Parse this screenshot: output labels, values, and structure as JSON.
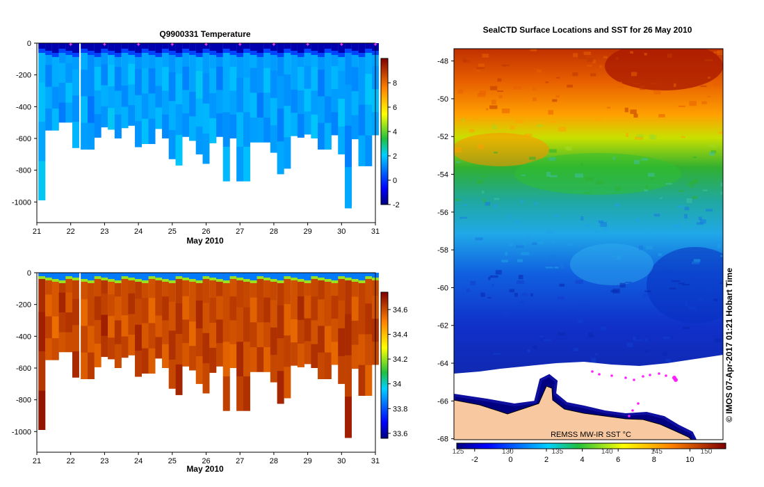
{
  "chart_data": [
    {
      "type": "heatmap",
      "title": "Q9900331  Temperature",
      "xlabel": "May 2010",
      "xlim": [
        21,
        31
      ],
      "ylim": [
        -1130,
        0
      ],
      "xticks": [
        "21",
        "22",
        "23",
        "24",
        "25",
        "26",
        "27",
        "28",
        "29",
        "30",
        "31"
      ],
      "yticks": [
        "0",
        "-200",
        "-400",
        "-600",
        "-800",
        "-1000"
      ],
      "colorbar": {
        "min": -2,
        "max": 10,
        "ticks": [
          "-2",
          "0",
          "2",
          "4",
          "6",
          "8"
        ]
      },
      "surface_value": -1.5,
      "profile_days": [
        21.15,
        21.35,
        21.55,
        21.75,
        21.95,
        22.15,
        22.4,
        22.6,
        22.8,
        23.0,
        23.2,
        23.4,
        23.6,
        23.8,
        24.0,
        24.2,
        24.4,
        24.6,
        24.8,
        25.0,
        25.2,
        25.4,
        25.6,
        25.8,
        26.0,
        26.2,
        26.4,
        26.6,
        26.8,
        27.0,
        27.2,
        27.4,
        27.6,
        27.8,
        28.0,
        28.2,
        28.4,
        28.6,
        28.8,
        29.0,
        29.2,
        29.4,
        29.6,
        29.8,
        30.0,
        30.2,
        30.4,
        30.6,
        30.8,
        31.0
      ],
      "profile_depths": [
        990,
        550,
        550,
        500,
        500,
        660,
        670,
        670,
        595,
        530,
        545,
        600,
        535,
        520,
        655,
        635,
        635,
        540,
        600,
        730,
        770,
        590,
        615,
        700,
        760,
        630,
        590,
        870,
        600,
        870,
        870,
        625,
        625,
        625,
        690,
        825,
        790,
        585,
        595,
        575,
        600,
        670,
        670,
        580,
        700,
        1040,
        605,
        775,
        775,
        580
      ],
      "profile_values": [
        1.7,
        1.4,
        1.6,
        1.3,
        1.5,
        1.4,
        1.6,
        1.2,
        1.5,
        1.3,
        1.7,
        1.4,
        1.5,
        1.6,
        1.3,
        1.5,
        1.4,
        1.6,
        1.5,
        1.3,
        1.6,
        1.4,
        1.5,
        1.7,
        1.4,
        1.5,
        1.3,
        1.6,
        1.5,
        1.4,
        1.5,
        1.6,
        1.3,
        1.5,
        1.4,
        1.2,
        1.6,
        1.5,
        1.4,
        1.5,
        1.6,
        1.3,
        1.5,
        1.4,
        1.6,
        1.2,
        1.5,
        1.4,
        1.6,
        1.5
      ],
      "profile_markers": [
        22,
        23,
        24,
        25,
        26,
        27,
        28,
        29,
        30,
        31
      ]
    },
    {
      "type": "heatmap",
      "xlabel": "May 2010",
      "xlim": [
        21,
        31
      ],
      "ylim": [
        -1130,
        0
      ],
      "xticks": [
        "21",
        "22",
        "23",
        "24",
        "25",
        "26",
        "27",
        "28",
        "29",
        "30",
        "31"
      ],
      "yticks": [
        "0",
        "-200",
        "-400",
        "-600",
        "-800",
        "-1000"
      ],
      "colorbar": {
        "min": 33.56,
        "max": 34.74,
        "ticks": [
          "33.6",
          "33.8",
          "34",
          "34.2",
          "34.4",
          "34.6"
        ]
      },
      "surface_value": 33.85,
      "thermocline_value": 34.2,
      "profile_values": [
        34.66,
        34.6,
        34.58,
        34.63,
        34.6,
        34.62,
        34.59,
        34.61,
        34.6,
        34.64,
        34.58,
        34.62,
        34.6,
        34.61,
        34.63,
        34.6,
        34.59,
        34.62,
        34.6,
        34.61,
        34.63,
        34.6,
        34.59,
        34.62,
        34.61,
        34.6,
        34.63,
        34.6,
        34.59,
        34.62,
        34.61,
        34.6,
        34.62,
        34.6,
        34.61,
        34.63,
        34.6,
        34.59,
        34.62,
        34.6,
        34.61,
        34.63,
        34.6,
        34.59,
        34.62,
        34.64,
        34.6,
        34.62,
        34.6,
        34.61
      ]
    },
    {
      "type": "heatmap",
      "title": "SealCTD Surface Locations and SST for 26 May 2010",
      "ylim": [
        -68.05,
        -47.35
      ],
      "yticks": [
        "-48",
        "-50",
        "-52",
        "-54",
        "-56",
        "-58",
        "-60",
        "-62",
        "-64",
        "-66",
        "-68"
      ],
      "colorbar_label": "REMSS MW-IR SST °C",
      "colorbar": {
        "min": -3,
        "max": 12,
        "ticks": [
          "-2",
          "0",
          "2",
          "4",
          "6",
          "8",
          "10"
        ],
        "ticks_alt": [
          "125",
          "130",
          "135",
          "140",
          "145",
          "150"
        ]
      },
      "credit": "© IMOS 07-Apr-2017 01:21 Hobart Time"
    }
  ]
}
